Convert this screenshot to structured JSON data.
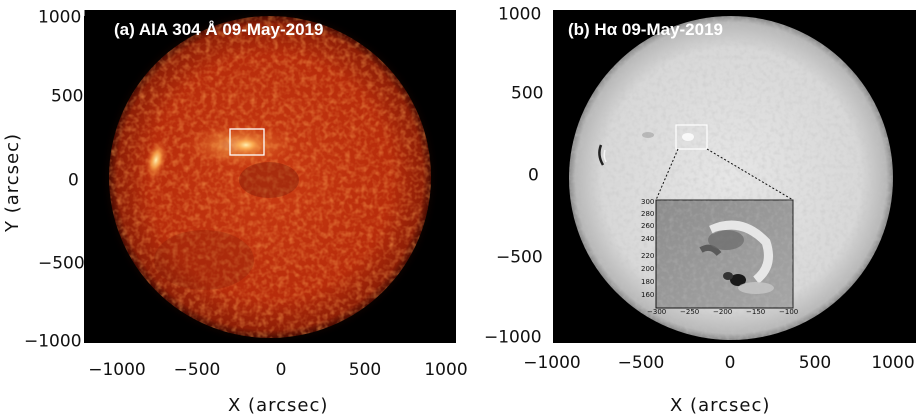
{
  "panel_a": {
    "title": "(a) AIA 304 Å  09-May-2019",
    "x_ticks": [
      "−1000",
      "−500",
      "0",
      "500",
      "1000"
    ],
    "y_ticks": [
      "1000",
      "500",
      "0",
      "−500",
      "−1000"
    ],
    "xlabel": "X (arcsec)",
    "ylabel": "Y (arcsec)"
  },
  "panel_b": {
    "title": "(b) Hα  09-May-2019",
    "x_ticks": [
      "−1000",
      "−500",
      "0",
      "500",
      "1000"
    ],
    "y_ticks": [
      "1000",
      "500",
      "0",
      "−500",
      "−1000"
    ],
    "xlabel": "X (arcsec)",
    "inset": {
      "x_ticks": [
        "−300",
        "−250",
        "−200",
        "−150",
        "−100"
      ],
      "y_ticks": [
        "300",
        "280",
        "260",
        "240",
        "220",
        "200",
        "180",
        "160"
      ]
    }
  },
  "colors": {
    "aia_disk": "#c2320e",
    "aia_bright": "#ffd27a",
    "halpha_disk": "#d9d9d9",
    "box": "#ffffff"
  }
}
